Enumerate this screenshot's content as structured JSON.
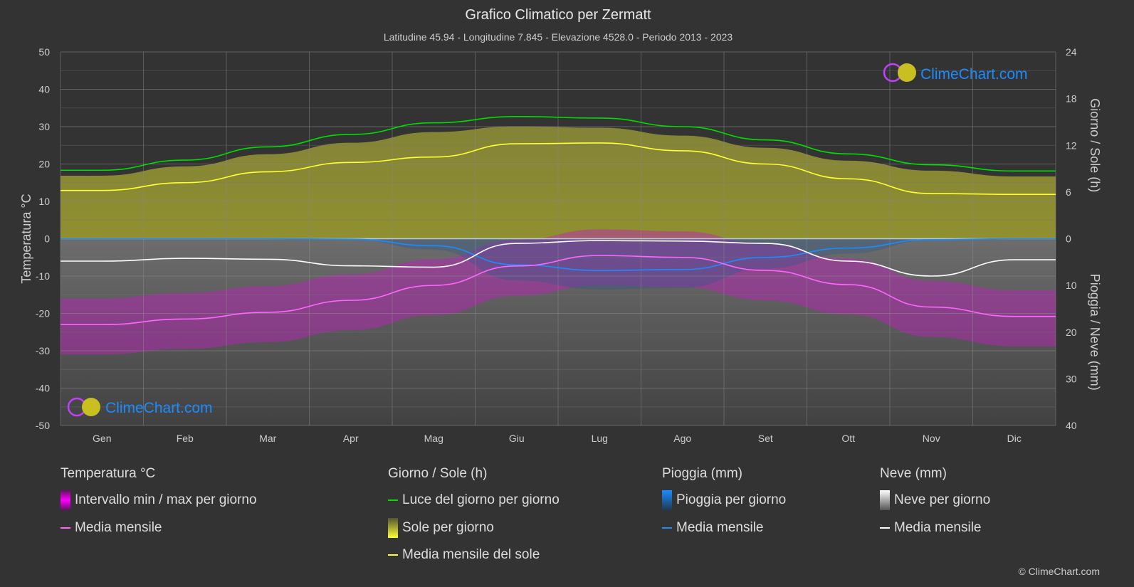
{
  "title": "Grafico Climatico per Zermatt",
  "subtitle": "Latitudine 45.94 - Longitudine 7.845 - Elevazione 4528.0 - Periodo 2013 - 2023",
  "watermark": "ClimeChart.com",
  "copyright": "© ClimeChart.com",
  "colors": {
    "background": "#333333",
    "temp_band": "#c020c0",
    "temp_mean": "#ff66ff",
    "daylight": "#00dd00",
    "sunshine": "#a0a030",
    "sun_mean": "#ffff33",
    "rain": "#1a8cff",
    "snow_mean": "#ffffff",
    "snow": "#888888"
  },
  "legend": {
    "temp": {
      "title": "Temperatura °C",
      "range": "Intervallo min / max per giorno",
      "mean": "Media mensile"
    },
    "sun": {
      "title": "Giorno / Sole (h)",
      "daylight": "Luce del giorno per giorno",
      "sunshine": "Sole per giorno",
      "mean": "Media mensile del sole"
    },
    "rain": {
      "title": "Pioggia (mm)",
      "daily": "Pioggia per giorno",
      "mean": "Media mensile"
    },
    "snow": {
      "title": "Neve (mm)",
      "daily": "Neve per giorno",
      "mean": "Media mensile"
    }
  },
  "chart_data": {
    "type": "line",
    "categories": [
      "Gen",
      "Feb",
      "Mar",
      "Apr",
      "Mag",
      "Giu",
      "Lug",
      "Ago",
      "Set",
      "Ott",
      "Nov",
      "Dic"
    ],
    "y_left": {
      "label": "Temperatura °C",
      "range": [
        -50,
        50
      ],
      "ticks": [
        50,
        40,
        30,
        20,
        10,
        0,
        -10,
        -20,
        -30,
        -40,
        -50
      ]
    },
    "y_right_top": {
      "label": "Giorno / Sole (h)",
      "range": [
        0,
        24
      ],
      "ticks": [
        24,
        18,
        12,
        6,
        0
      ]
    },
    "y_right_bottom": {
      "label": "Pioggia / Neve (mm)",
      "range": [
        0,
        40
      ],
      "ticks": [
        0,
        10,
        20,
        30,
        40
      ]
    },
    "grid": true,
    "legend_placement": "bottom",
    "series": [
      {
        "name": "Media mensile",
        "key": "temp_mean",
        "axis": "temp",
        "values": [
          -23,
          -21.5,
          -19.7,
          -16.5,
          -12.5,
          -7.3,
          -4.5,
          -5,
          -8.5,
          -12.3,
          -18.3,
          -20.8
        ]
      },
      {
        "name": "Luce del giorno per giorno",
        "key": "daylight",
        "axis": "hours",
        "values": [
          8.8,
          10.1,
          11.8,
          13.4,
          14.9,
          15.7,
          15.5,
          14.4,
          12.7,
          10.9,
          9.5,
          8.7
        ]
      },
      {
        "name": "Media mensile del sole",
        "key": "sun_mean",
        "axis": "hours",
        "values": [
          6.2,
          7.2,
          8.6,
          9.8,
          10.5,
          12.2,
          12.3,
          11.3,
          9.6,
          7.7,
          5.8,
          5.7
        ]
      },
      {
        "name": "Media mensile",
        "key": "rain_mean",
        "axis": "mm",
        "values": [
          0,
          0,
          0,
          0.1,
          1.5,
          5.6,
          6.8,
          6.6,
          4.0,
          2.0,
          0.2,
          0
        ]
      },
      {
        "name": "Media mensile",
        "key": "snow_mean",
        "axis": "mm",
        "values": [
          4.8,
          4.2,
          4.4,
          5.8,
          6.1,
          1.0,
          0.4,
          0.5,
          1.0,
          4.8,
          8.0,
          4.5
        ]
      }
    ]
  }
}
